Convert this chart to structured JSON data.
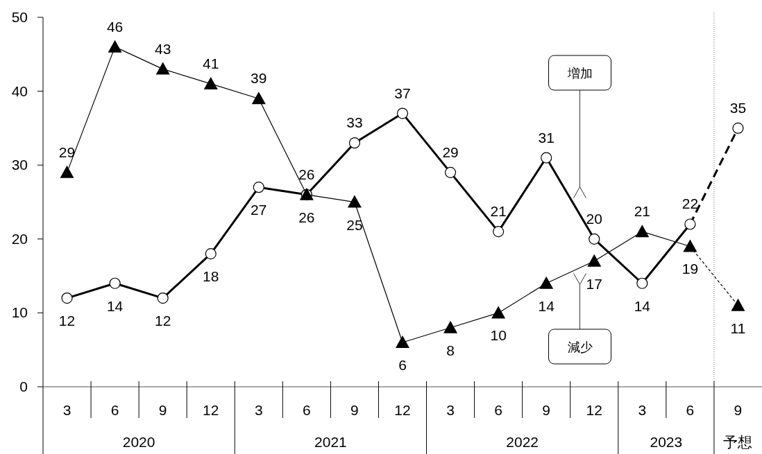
{
  "chart_data": {
    "type": "line",
    "categories": [
      "3",
      "6",
      "9",
      "12",
      "3",
      "6",
      "9",
      "12",
      "3",
      "6",
      "9",
      "12",
      "3",
      "6",
      "9"
    ],
    "series": [
      {
        "name": "増加",
        "color": "#000000",
        "marker": "circle",
        "values": [
          12,
          14,
          12,
          18,
          27,
          26,
          33,
          37,
          29,
          21,
          31,
          20,
          14,
          22,
          35
        ]
      },
      {
        "name": "減少",
        "color": "#000000",
        "marker": "triangle",
        "values": [
          29,
          46,
          43,
          41,
          39,
          26,
          25,
          6,
          8,
          10,
          14,
          17,
          21,
          19,
          11
        ]
      }
    ],
    "ylim": [
      0,
      50
    ],
    "yticks": [
      0,
      10,
      20,
      30,
      40,
      50
    ],
    "data_labels": true,
    "annotations": [
      "2020",
      "2021",
      "2022",
      "2023",
      "予想"
    ]
  }
}
